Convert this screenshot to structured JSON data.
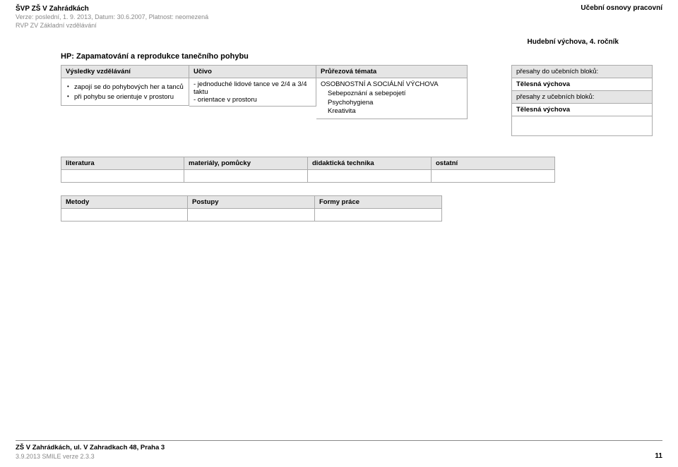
{
  "header": {
    "title": "ŠVP ZŠ V Zahrádkách",
    "subtitle1": "Verze: poslední, 1. 9. 2013, Datum: 30.6.2007, Platnost: neomezená",
    "subtitle2": "RVP ZV Základní vzdělávání",
    "right": "Učební osnovy pracovní"
  },
  "context": "Hudební výchova, 4. ročník",
  "hp_title": "HP: Zapamatování a reprodukce tanečního pohybu",
  "col_headers": {
    "vv": "Výsledky vzdělávání",
    "uc": "Učivo",
    "pt": "Průřezová témata",
    "pre_do": "přesahy do učebních bloků:",
    "pre_z": "přesahy z učebních bloků:"
  },
  "vv_items": [
    "zapojí se do pohybových her a tanců",
    "při pohybu se orientuje v prostoru"
  ],
  "uc_lines": [
    "- jednoduché lidové tance ve 2/4 a 3/4 taktu",
    "- orientace v prostoru"
  ],
  "pt": {
    "main": "OSOBNOSTNÍ A SOCIÁLNÍ VÝCHOVA",
    "subs": [
      "Sebepoznání a sebepojetí",
      "Psychohygiena",
      "Kreativita"
    ]
  },
  "pre_do_value": "Tělesná výchova",
  "pre_z_value": "Tělesná výchova",
  "table4": [
    "literatura",
    "materiály, pomůcky",
    "didaktická technika",
    "ostatní"
  ],
  "table3": [
    "Metody",
    "Postupy",
    "Formy práce"
  ],
  "footer": {
    "line1": "ZŠ V Zahrádkách, ul. V Zahradkach 48, Praha 3",
    "line2": "3.9.2013 SMILE verze 2.3.3",
    "page": "11"
  }
}
